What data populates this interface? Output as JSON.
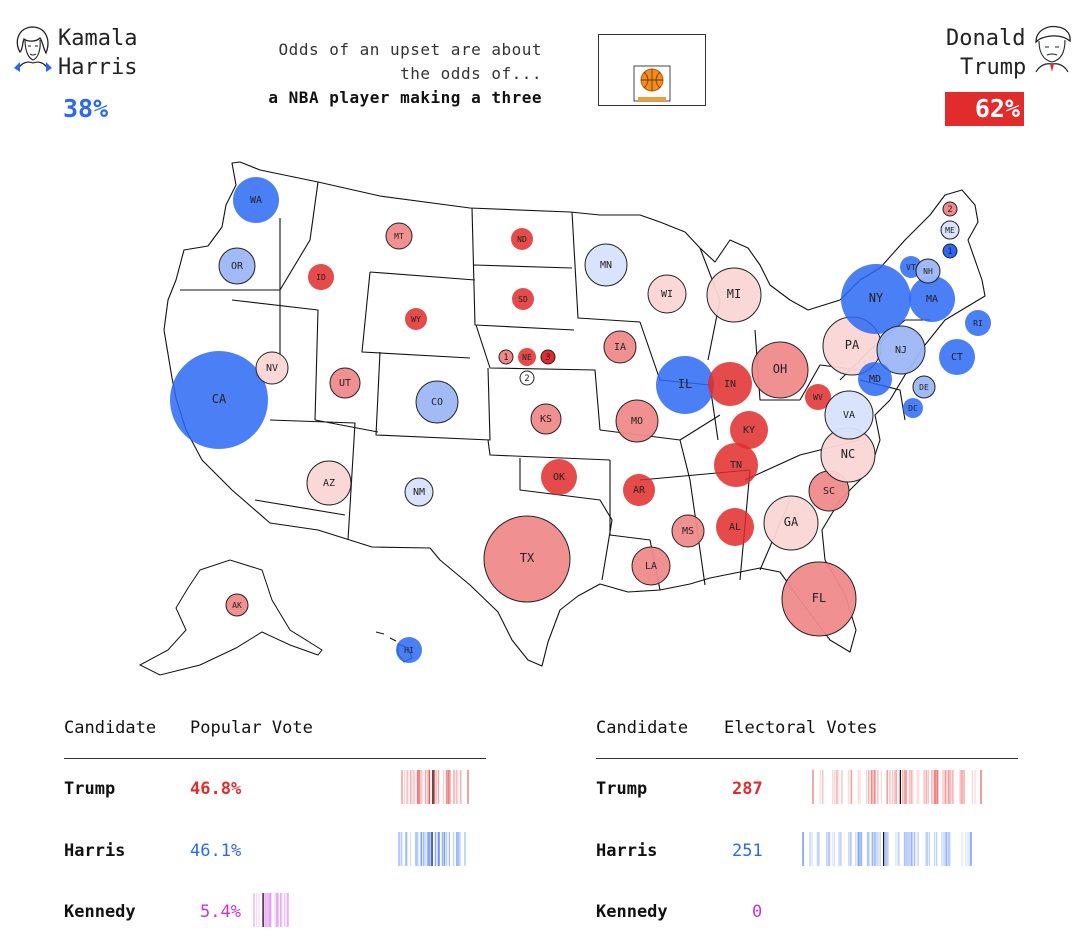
{
  "header": {
    "left": {
      "first": "Kamala",
      "last": "Harris",
      "pct": "38%"
    },
    "right": {
      "first": "Donald",
      "last": "Trump",
      "pct": "62%"
    },
    "odds": {
      "line1": "Odds of an upset are about",
      "line2": "the odds of...",
      "line3": "a NBA player making a three"
    }
  },
  "colors": {
    "dem": "#2c68f5",
    "dem_light": "#9db7f7",
    "dem_pale": "#d7e2fb",
    "rep": "#e22c2c",
    "rep_light": "#f08a8a",
    "rep_pale": "#fad6d6",
    "other": "#c832e0"
  },
  "map": {
    "states": [
      {
        "abbr": "WA",
        "lean": "dem"
      },
      {
        "abbr": "OR",
        "lean": "dem_light"
      },
      {
        "abbr": "CA",
        "lean": "dem"
      },
      {
        "abbr": "NV",
        "lean": "rep_pale"
      },
      {
        "abbr": "ID",
        "lean": "rep"
      },
      {
        "abbr": "MT",
        "lean": "rep_light"
      },
      {
        "abbr": "WY",
        "lean": "rep"
      },
      {
        "abbr": "UT",
        "lean": "rep_light"
      },
      {
        "abbr": "AZ",
        "lean": "rep_pale"
      },
      {
        "abbr": "CO",
        "lean": "dem_light"
      },
      {
        "abbr": "NM",
        "lean": "dem_pale"
      },
      {
        "abbr": "ND",
        "lean": "rep"
      },
      {
        "abbr": "SD",
        "lean": "rep"
      },
      {
        "abbr": "NE",
        "lean": "rep"
      },
      {
        "abbr": "KS",
        "lean": "rep_light"
      },
      {
        "abbr": "OK",
        "lean": "rep"
      },
      {
        "abbr": "TX",
        "lean": "rep_light"
      },
      {
        "abbr": "MN",
        "lean": "dem_pale"
      },
      {
        "abbr": "IA",
        "lean": "rep_light"
      },
      {
        "abbr": "MO",
        "lean": "rep_light"
      },
      {
        "abbr": "AR",
        "lean": "rep"
      },
      {
        "abbr": "LA",
        "lean": "rep_light"
      },
      {
        "abbr": "WI",
        "lean": "rep_pale"
      },
      {
        "abbr": "IL",
        "lean": "dem"
      },
      {
        "abbr": "MS",
        "lean": "rep_light"
      },
      {
        "abbr": "MI",
        "lean": "rep_pale"
      },
      {
        "abbr": "IN",
        "lean": "rep"
      },
      {
        "abbr": "KY",
        "lean": "rep"
      },
      {
        "abbr": "TN",
        "lean": "rep"
      },
      {
        "abbr": "AL",
        "lean": "rep"
      },
      {
        "abbr": "OH",
        "lean": "rep_light"
      },
      {
        "abbr": "WV",
        "lean": "rep"
      },
      {
        "abbr": "GA",
        "lean": "rep_pale"
      },
      {
        "abbr": "FL",
        "lean": "rep_light"
      },
      {
        "abbr": "SC",
        "lean": "rep_light"
      },
      {
        "abbr": "NC",
        "lean": "rep_pale"
      },
      {
        "abbr": "VA",
        "lean": "dem_pale"
      },
      {
        "abbr": "PA",
        "lean": "rep_pale"
      },
      {
        "abbr": "NY",
        "lean": "dem"
      },
      {
        "abbr": "NJ",
        "lean": "dem_light"
      },
      {
        "abbr": "MD",
        "lean": "dem"
      },
      {
        "abbr": "DE",
        "lean": "dem_light"
      },
      {
        "abbr": "DC",
        "lean": "dem"
      },
      {
        "abbr": "CT",
        "lean": "dem"
      },
      {
        "abbr": "RI",
        "lean": "dem"
      },
      {
        "abbr": "MA",
        "lean": "dem"
      },
      {
        "abbr": "VT",
        "lean": "dem"
      },
      {
        "abbr": "NH",
        "lean": "dem_light"
      },
      {
        "abbr": "ME",
        "lean": "dem_pale"
      },
      {
        "abbr": "AK",
        "lean": "rep_light"
      },
      {
        "abbr": "HI",
        "lean": "dem"
      }
    ],
    "districts": [
      {
        "label": "1",
        "lean": "rep_light"
      },
      {
        "label": "3",
        "lean": "rep"
      },
      {
        "label": "2",
        "lean": "none"
      },
      {
        "label": "2",
        "lean": "rep_light"
      },
      {
        "label": "1",
        "lean": "dem"
      }
    ]
  },
  "popular": {
    "col1": "Candidate",
    "col2": "Popular Vote",
    "rows": [
      {
        "name": "Trump",
        "value": "46.8%",
        "party": "rep"
      },
      {
        "name": "Harris",
        "value": "46.1%",
        "party": "dem"
      },
      {
        "name": "Kennedy",
        "value": "5.4%",
        "party": "other"
      }
    ]
  },
  "electoral": {
    "col1": "Candidate",
    "col2": "Electoral Votes",
    "rows": [
      {
        "name": "Trump",
        "value": "287",
        "party": "rep"
      },
      {
        "name": "Harris",
        "value": "251",
        "party": "dem"
      },
      {
        "name": "Kennedy",
        "value": "0",
        "party": "other"
      }
    ]
  }
}
